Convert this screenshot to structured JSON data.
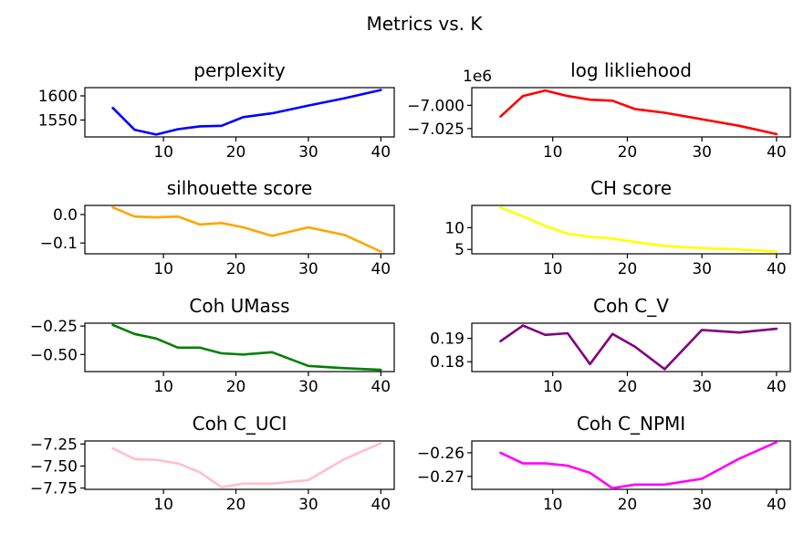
{
  "figure": {
    "suptitle": "Metrics vs. K"
  },
  "chart_data": [
    {
      "type": "line",
      "title": "perplexity",
      "color": "#0000ff",
      "x": [
        3,
        6,
        9,
        12,
        15,
        18,
        21,
        25,
        30,
        35,
        40
      ],
      "y": [
        1575,
        1530,
        1520,
        1531,
        1537,
        1538,
        1556,
        1564,
        1580,
        1595,
        1612
      ],
      "xlim": [
        -0.85,
        41.85
      ],
      "ylim": [
        1515,
        1617
      ],
      "xticks": [
        10,
        20,
        30,
        40
      ],
      "yticks": [
        1550,
        1600
      ],
      "xtick_labels": [
        "10",
        "20",
        "30",
        "40"
      ],
      "ytick_labels": [
        "1550",
        "1600"
      ],
      "offset_text": ""
    },
    {
      "type": "line",
      "title": "log likliehood",
      "color": "#ff0000",
      "x": [
        3,
        6,
        9,
        12,
        15,
        18,
        21,
        25,
        30,
        35,
        40
      ],
      "y": [
        -7012000,
        -6990000,
        -6984000,
        -6990000,
        -6994000,
        -6995000,
        -7004000,
        -7008000,
        -7015000,
        -7022000,
        -7031000
      ],
      "xlim": [
        -0.85,
        41.85
      ],
      "ylim": [
        -7034000,
        -6981000
      ],
      "xticks": [
        10,
        20,
        30,
        40
      ],
      "yticks": [
        -7025000,
        -7000000
      ],
      "xtick_labels": [
        "10",
        "20",
        "30",
        "40"
      ],
      "ytick_labels": [
        "−7.025",
        "−7.000"
      ],
      "offset_text": "1e6"
    },
    {
      "type": "line",
      "title": "silhouette score",
      "color": "#ffa500",
      "x": [
        3,
        6,
        9,
        12,
        15,
        18,
        21,
        25,
        30,
        35,
        40
      ],
      "y": [
        0.025,
        -0.007,
        -0.01,
        -0.007,
        -0.035,
        -0.03,
        -0.045,
        -0.075,
        -0.045,
        -0.072,
        -0.13
      ],
      "xlim": [
        -0.85,
        41.85
      ],
      "ylim": [
        -0.138,
        0.032
      ],
      "xticks": [
        10,
        20,
        30,
        40
      ],
      "yticks": [
        -0.1,
        0.0
      ],
      "xtick_labels": [
        "10",
        "20",
        "30",
        "40"
      ],
      "ytick_labels": [
        "−0.1",
        "0.0"
      ],
      "offset_text": ""
    },
    {
      "type": "line",
      "title": "CH score",
      "color": "#ffff00",
      "x": [
        3,
        6,
        9,
        12,
        15,
        18,
        21,
        25,
        30,
        35,
        40
      ],
      "y": [
        14.6,
        12.6,
        10.4,
        8.6,
        7.9,
        7.5,
        6.7,
        5.8,
        5.3,
        5.0,
        4.5
      ],
      "xlim": [
        -0.85,
        41.85
      ],
      "ylim": [
        4.0,
        15.1
      ],
      "xticks": [
        10,
        20,
        30,
        40
      ],
      "yticks": [
        5,
        10
      ],
      "xtick_labels": [
        "10",
        "20",
        "30",
        "40"
      ],
      "ytick_labels": [
        "5",
        "10"
      ],
      "offset_text": ""
    },
    {
      "type": "line",
      "title": "Coh UMass",
      "color": "#008000",
      "x": [
        3,
        6,
        9,
        12,
        15,
        18,
        21,
        25,
        30,
        35,
        40
      ],
      "y": [
        -0.24,
        -0.32,
        -0.36,
        -0.44,
        -0.44,
        -0.49,
        -0.5,
        -0.48,
        -0.6,
        -0.62,
        -0.635
      ],
      "xlim": [
        -0.85,
        41.85
      ],
      "ylim": [
        -0.65,
        -0.225
      ],
      "xticks": [
        10,
        20,
        30,
        40
      ],
      "yticks": [
        -0.5,
        -0.25
      ],
      "xtick_labels": [
        "10",
        "20",
        "30",
        "40"
      ],
      "ytick_labels": [
        "−0.50",
        "−0.25"
      ],
      "offset_text": ""
    },
    {
      "type": "line",
      "title": "Coh C_V",
      "color": "#800080",
      "x": [
        3,
        6,
        9,
        12,
        15,
        18,
        21,
        25,
        30,
        35,
        40
      ],
      "y": [
        0.1888,
        0.1955,
        0.1915,
        0.1922,
        0.179,
        0.1919,
        0.1865,
        0.1768,
        0.1936,
        0.1925,
        0.1941
      ],
      "xlim": [
        -0.85,
        41.85
      ],
      "ylim": [
        0.1758,
        0.1965
      ],
      "xticks": [
        10,
        20,
        30,
        40
      ],
      "yticks": [
        0.18,
        0.19
      ],
      "xtick_labels": [
        "10",
        "20",
        "30",
        "40"
      ],
      "ytick_labels": [
        "0.18",
        "0.19"
      ],
      "offset_text": ""
    },
    {
      "type": "line",
      "title": "Coh C_UCI",
      "color": "#ffc0cb",
      "x": [
        3,
        6,
        9,
        12,
        15,
        18,
        21,
        25,
        30,
        35,
        40
      ],
      "y": [
        -7.3,
        -7.42,
        -7.43,
        -7.47,
        -7.57,
        -7.74,
        -7.7,
        -7.7,
        -7.66,
        -7.42,
        -7.24
      ],
      "xlim": [
        -0.85,
        41.85
      ],
      "ylim": [
        -7.765,
        -7.215
      ],
      "xticks": [
        10,
        20,
        30,
        40
      ],
      "yticks": [
        -7.75,
        -7.5,
        -7.25
      ],
      "xtick_labels": [
        "10",
        "20",
        "30",
        "40"
      ],
      "ytick_labels": [
        "−7.75",
        "−7.50",
        "−7.25"
      ],
      "offset_text": ""
    },
    {
      "type": "line",
      "title": "Coh C_NPMI",
      "color": "#ff00ff",
      "x": [
        3,
        6,
        9,
        12,
        15,
        18,
        21,
        25,
        30,
        35,
        40
      ],
      "y": [
        -0.26,
        -0.2645,
        -0.2645,
        -0.2655,
        -0.2685,
        -0.275,
        -0.2735,
        -0.2735,
        -0.271,
        -0.2625,
        -0.2555
      ],
      "xlim": [
        -0.85,
        41.85
      ],
      "ylim": [
        -0.2755,
        -0.255
      ],
      "xticks": [
        10,
        20,
        30,
        40
      ],
      "yticks": [
        -0.27,
        -0.26
      ],
      "xtick_labels": [
        "10",
        "20",
        "30",
        "40"
      ],
      "ytick_labels": [
        "−0.27",
        "−0.26"
      ],
      "offset_text": ""
    }
  ]
}
